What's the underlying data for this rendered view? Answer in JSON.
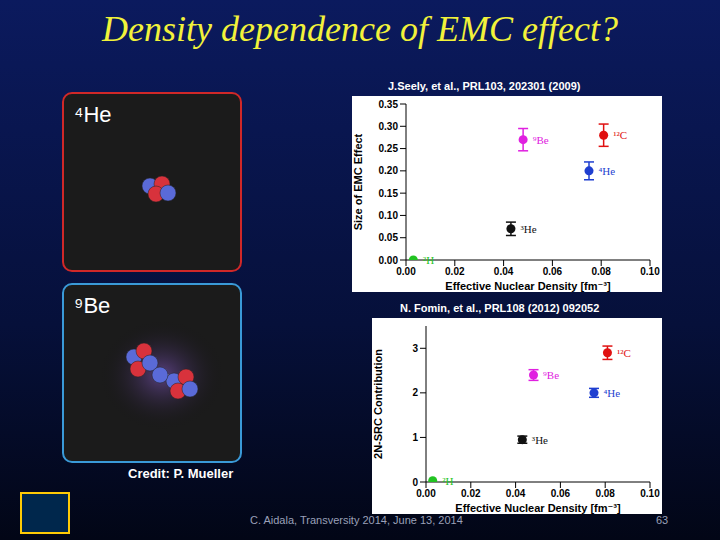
{
  "title": "Density dependence of EMC effect?",
  "images": [
    {
      "label": "⁴He"
    },
    {
      "label": "⁹Be"
    }
  ],
  "credit": "Credit: P. Mueller",
  "footer": "C. Aidala, Transversity 2014, June 13, 2014",
  "page": 63,
  "chart_data": [
    {
      "type": "scatter",
      "title": "J.Seely, et al., PRL103, 202301 (2009)",
      "x_label": "Effective Nuclear Density [fm⁻³]",
      "y_label": "Size of EMC Effect",
      "xlim": [
        0,
        0.1
      ],
      "xticks": [
        {
          "value": 0,
          "label": "0.00"
        },
        {
          "value": 0.02,
          "label": "0.02"
        },
        {
          "value": 0.04,
          "label": "0.04"
        },
        {
          "value": 0.06,
          "label": "0.06"
        },
        {
          "value": 0.08,
          "label": "0.08"
        },
        {
          "value": 0.1,
          "label": "0.10"
        }
      ],
      "ylim": [
        0,
        0.35
      ],
      "yticks": [
        {
          "value": 0,
          "label": "0.00"
        },
        {
          "value": 0.05,
          "label": "0.05"
        },
        {
          "value": 0.1,
          "label": "0.10"
        },
        {
          "value": 0.15,
          "label": "0.15"
        },
        {
          "value": 0.2,
          "label": "0.20"
        },
        {
          "value": 0.25,
          "label": "0.25"
        },
        {
          "value": 0.3,
          "label": "0.30"
        },
        {
          "value": 0.35,
          "label": "0.35"
        }
      ],
      "series": [
        {
          "name": "²H",
          "color": "#22c322",
          "x": [
            0.003
          ],
          "values": [
            0.0
          ],
          "error": [
            0.0
          ]
        },
        {
          "name": "³He",
          "color": "#111111",
          "x": [
            0.043
          ],
          "values": [
            0.07
          ],
          "error": [
            0.015
          ]
        },
        {
          "name": "⁹Be",
          "color": "#e020e0",
          "x": [
            0.048
          ],
          "values": [
            0.27
          ],
          "error": [
            0.025
          ]
        },
        {
          "name": "⁴He",
          "color": "#1f3fd0",
          "x": [
            0.075
          ],
          "values": [
            0.2
          ],
          "error": [
            0.02
          ]
        },
        {
          "name": "¹²C",
          "color": "#e01010",
          "x": [
            0.081
          ],
          "values": [
            0.28
          ],
          "error": [
            0.025
          ]
        }
      ]
    },
    {
      "type": "scatter",
      "title": "N. Fomin, et al., PRL108 (2012) 092052",
      "x_label": "Effective Nuclear Density [fm⁻³]",
      "y_label": "2N-SRC Contribution",
      "xlim": [
        0,
        0.1
      ],
      "xticks": [
        {
          "value": 0,
          "label": "0.00"
        },
        {
          "value": 0.02,
          "label": "0.02"
        },
        {
          "value": 0.04,
          "label": "0.04"
        },
        {
          "value": 0.06,
          "label": "0.06"
        },
        {
          "value": 0.08,
          "label": "0.08"
        },
        {
          "value": 0.1,
          "label": "0.10"
        }
      ],
      "ylim": [
        0,
        3.5
      ],
      "yticks": [
        0,
        1,
        2,
        3
      ],
      "series": [
        {
          "name": "²H",
          "color": "#22c322",
          "x": [
            0.003
          ],
          "values": [
            0.03
          ],
          "error": [
            0.0
          ]
        },
        {
          "name": "³He",
          "color": "#111111",
          "x": [
            0.043
          ],
          "values": [
            0.95
          ],
          "error": [
            0.08
          ]
        },
        {
          "name": "⁹Be",
          "color": "#e020e0",
          "x": [
            0.048
          ],
          "values": [
            2.4
          ],
          "error": [
            0.12
          ]
        },
        {
          "name": "⁴He",
          "color": "#1f3fd0",
          "x": [
            0.075
          ],
          "values": [
            2.0
          ],
          "error": [
            0.1
          ]
        },
        {
          "name": "¹²C",
          "color": "#e01010",
          "x": [
            0.081
          ],
          "values": [
            2.9
          ],
          "error": [
            0.15
          ]
        }
      ]
    }
  ]
}
